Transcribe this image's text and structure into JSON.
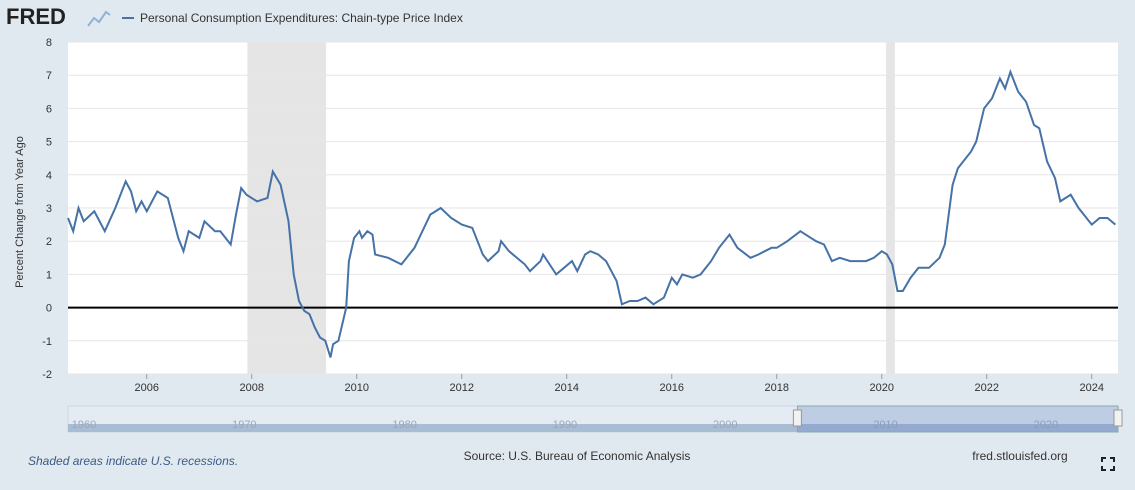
{
  "logo": "FRED",
  "footer": {
    "note": "Shaded areas indicate U.S. recessions.",
    "source": "Source: U.S. Bureau of Economic Analysis",
    "site": "fred.stlouisfed.org"
  },
  "chart_data": {
    "type": "line",
    "ylabel": "Percent Change from Year Ago",
    "series": [
      {
        "name": "Personal Consumption Expenditures: Chain-type Price Index",
        "color": "#4572a7",
        "x": [
          2004.5,
          2004.6,
          2004.7,
          2004.8,
          2005.0,
          2005.2,
          2005.4,
          2005.6,
          2005.7,
          2005.8,
          2005.9,
          2006.0,
          2006.1,
          2006.2,
          2006.4,
          2006.6,
          2006.7,
          2006.8,
          2007.0,
          2007.1,
          2007.3,
          2007.4,
          2007.6,
          2007.7,
          2007.8,
          2007.9,
          2008.1,
          2008.3,
          2008.4,
          2008.55,
          2008.7,
          2008.8,
          2008.9,
          2009.0,
          2009.1,
          2009.2,
          2009.3,
          2009.4,
          2009.5,
          2009.55,
          2009.65,
          2009.8,
          2009.85,
          2009.95,
          2010.05,
          2010.1,
          2010.2,
          2010.3,
          2010.35,
          2010.6,
          2010.85,
          2011.1,
          2011.25,
          2011.4,
          2011.6,
          2011.8,
          2012.0,
          2012.2,
          2012.4,
          2012.5,
          2012.7,
          2012.75,
          2012.9,
          2013.2,
          2013.3,
          2013.5,
          2013.55,
          2013.8,
          2014.1,
          2014.2,
          2014.35,
          2014.45,
          2014.6,
          2014.75,
          2014.95,
          2015.05,
          2015.2,
          2015.35,
          2015.5,
          2015.65,
          2015.85,
          2016.0,
          2016.1,
          2016.2,
          2016.4,
          2016.55,
          2016.75,
          2016.9,
          2017.1,
          2017.25,
          2017.5,
          2017.65,
          2017.9,
          2018.0,
          2018.2,
          2018.45,
          2018.55,
          2018.75,
          2018.9,
          2019.05,
          2019.2,
          2019.4,
          2019.7,
          2019.85,
          2020.0,
          2020.1,
          2020.2,
          2020.3,
          2020.4,
          2020.55,
          2020.7,
          2020.9,
          2021.1,
          2021.2,
          2021.35,
          2021.45,
          2021.7,
          2021.8,
          2021.95,
          2022.1,
          2022.25,
          2022.35,
          2022.45,
          2022.6,
          2022.75,
          2022.9,
          2023.0,
          2023.15,
          2023.3,
          2023.4,
          2023.6,
          2023.75,
          2023.9,
          2024.0,
          2024.15,
          2024.3,
          2024.45
        ],
        "values": [
          2.7,
          2.3,
          3.0,
          2.6,
          2.9,
          2.3,
          3.0,
          3.8,
          3.5,
          2.9,
          3.2,
          2.9,
          3.2,
          3.5,
          3.3,
          2.1,
          1.7,
          2.3,
          2.1,
          2.6,
          2.3,
          2.3,
          1.9,
          2.8,
          3.6,
          3.4,
          3.2,
          3.3,
          4.1,
          3.7,
          2.6,
          1.0,
          0.2,
          -0.1,
          -0.2,
          -0.6,
          -0.9,
          -1.0,
          -1.5,
          -1.1,
          -1.0,
          0.0,
          1.4,
          2.1,
          2.3,
          2.1,
          2.3,
          2.2,
          1.6,
          1.5,
          1.3,
          1.8,
          2.3,
          2.8,
          3.0,
          2.7,
          2.5,
          2.4,
          1.6,
          1.4,
          1.7,
          2.0,
          1.7,
          1.3,
          1.1,
          1.4,
          1.6,
          1.0,
          1.4,
          1.1,
          1.6,
          1.7,
          1.6,
          1.4,
          0.8,
          0.1,
          0.2,
          0.2,
          0.3,
          0.1,
          0.3,
          0.9,
          0.7,
          1.0,
          0.9,
          1.0,
          1.4,
          1.8,
          2.2,
          1.8,
          1.5,
          1.6,
          1.8,
          1.8,
          2.0,
          2.3,
          2.2,
          2.0,
          1.9,
          1.4,
          1.5,
          1.4,
          1.4,
          1.5,
          1.7,
          1.6,
          1.3,
          0.5,
          0.5,
          0.9,
          1.2,
          1.2,
          1.5,
          1.9,
          3.7,
          4.2,
          4.7,
          5.0,
          6.0,
          6.3,
          6.9,
          6.6,
          7.1,
          6.5,
          6.2,
          5.5,
          5.4,
          4.4,
          3.9,
          3.2,
          3.4,
          3.0,
          2.7,
          2.5,
          2.7,
          2.7,
          2.5
        ]
      }
    ],
    "recessions": [
      [
        2007.917,
        2009.417
      ],
      [
        2020.083,
        2020.25
      ]
    ],
    "xlim": [
      2004.5,
      2024.5
    ],
    "xticks": [
      2006,
      2008,
      2010,
      2012,
      2014,
      2016,
      2018,
      2020,
      2022,
      2024
    ],
    "ylim": [
      -2,
      8
    ],
    "yticks": [
      -2,
      -1,
      0,
      1,
      2,
      3,
      4,
      5,
      6,
      7,
      8
    ],
    "grid": true,
    "zero_line": true,
    "navigator": {
      "xlim": [
        1959,
        2024.5
      ],
      "xticks": [
        1960,
        1970,
        1980,
        1990,
        2000,
        2010,
        2020
      ]
    }
  }
}
